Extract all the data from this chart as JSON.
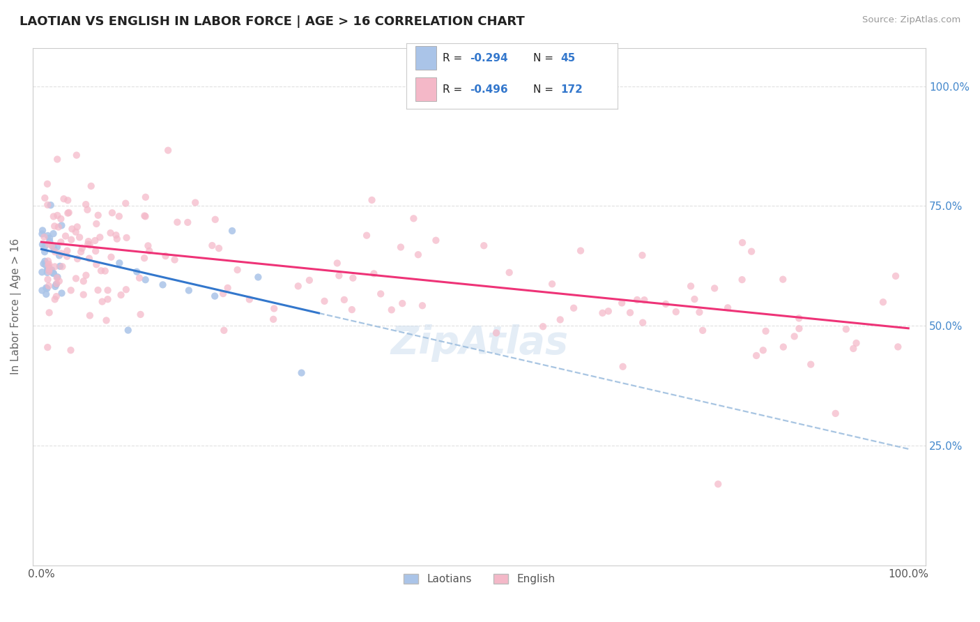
{
  "title": "LAOTIAN VS ENGLISH IN LABOR FORCE | AGE > 16 CORRELATION CHART",
  "source_text": "Source: ZipAtlas.com",
  "ylabel": "In Labor Force | Age > 16",
  "legend_label1": "Laotians",
  "legend_label2": "English",
  "r1": -0.294,
  "n1": 45,
  "r2": -0.496,
  "n2": 172,
  "color_laotian": "#aac4e8",
  "color_english": "#f4b8c8",
  "color_trendline1": "#3377cc",
  "color_trendline2": "#ee3377",
  "color_dashed": "#99bbdd",
  "background_color": "#ffffff",
  "grid_color": "#e0e0e0",
  "title_color": "#222222",
  "lao_trend_x0": 0.0,
  "lao_trend_y0": 0.66,
  "lao_trend_x1": 0.3,
  "lao_trend_y1": 0.535,
  "eng_trend_x0": 0.0,
  "eng_trend_y0": 0.675,
  "eng_trend_x1": 1.0,
  "eng_trend_y1": 0.495,
  "ylim_min": 0.0,
  "ylim_max": 1.08,
  "xlim_min": -0.01,
  "xlim_max": 1.02,
  "watermark": "ZipAtlas"
}
